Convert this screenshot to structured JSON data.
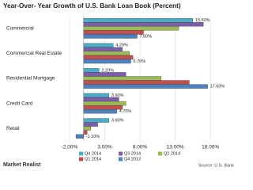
{
  "chart_data": {
    "type": "barh",
    "title": "Year-Over- Year Growth of U.S. Bank Loan Book (Percent)",
    "categories": [
      "Commercial",
      "Commercial Real Estate",
      "Residential Mortgage",
      "Credit Card",
      "Retail"
    ],
    "series": [
      {
        "name": "Q4 2014",
        "color": "#4bacc6",
        "values": [
          15.5,
          4.2,
          2.2,
          3.6,
          3.6
        ],
        "value_labels": [
          "15.50%",
          "4.20%",
          "2.20%",
          "3.60%",
          "3.60%"
        ]
      },
      {
        "name": "Q3 2014",
        "color": "#7b5ea7",
        "values": [
          17,
          5.5,
          6,
          5,
          2
        ]
      },
      {
        "name": "Q2 2014",
        "color": "#9bbb59",
        "values": [
          13.5,
          6.5,
          11,
          6,
          1
        ]
      },
      {
        "name": "Q1 2014",
        "color": "#c0504d",
        "values": [
          8.5,
          7,
          15,
          5.5,
          0.5
        ]
      },
      {
        "name": "Q4 2013",
        "color": "#4f81bd",
        "values": [
          7.6,
          6.7,
          17.6,
          4.7,
          -1.1
        ],
        "value_labels": [
          "7.60%",
          "6.70%",
          "17.60%",
          "4.70%",
          "-1.10%"
        ]
      }
    ],
    "xlim": [
      -2,
      20
    ],
    "xticks": [
      {
        "value": -2,
        "label": "-2.00%"
      },
      {
        "value": 3,
        "label": "3.00%"
      },
      {
        "value": 8,
        "label": "8.00%"
      },
      {
        "value": 13,
        "label": "13.00%"
      },
      {
        "value": 18,
        "label": "18.00%"
      }
    ],
    "grid": true,
    "source": "Source: U.S. Bank",
    "logo": "Market Realist"
  }
}
